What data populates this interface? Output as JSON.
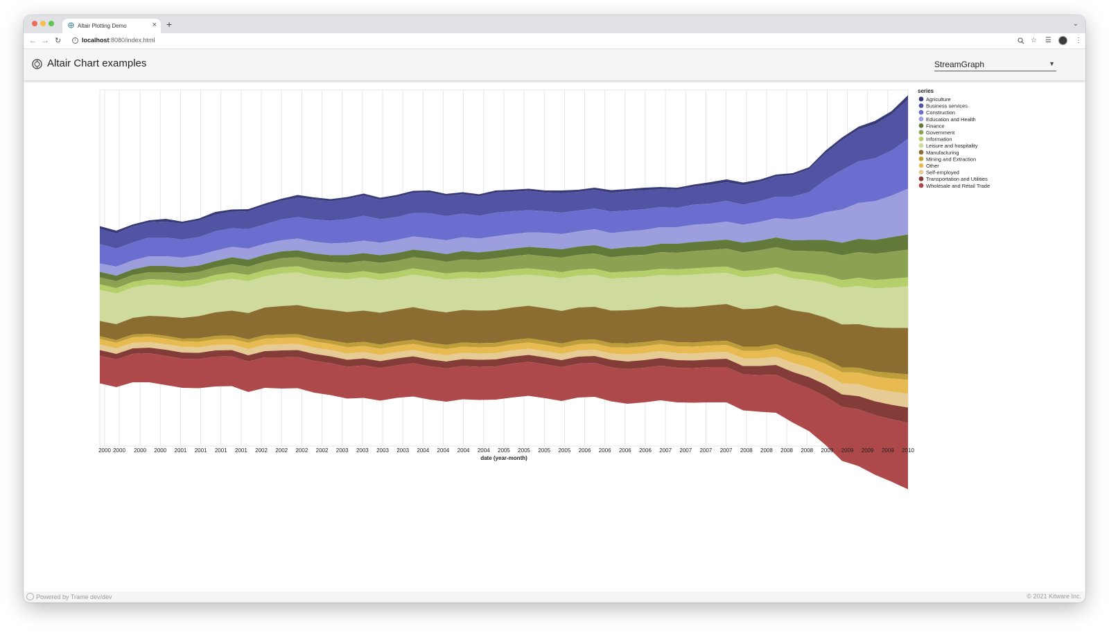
{
  "browser": {
    "tab_title": "Altair Plotting Demo",
    "tab_close": "×",
    "new_tab": "+",
    "url_host": "localhost",
    "url_path": ":8080/index.html",
    "icons": [
      "back-arrow-icon",
      "forward-arrow-icon",
      "reload-icon",
      "info-icon",
      "zoom-icon",
      "star-icon",
      "reading-list-icon",
      "profile-avatar",
      "menu-kebab-icon",
      "favicon"
    ]
  },
  "app": {
    "title": "Altair Chart examples",
    "select_value": "StreamGraph"
  },
  "footer": {
    "left": "Powered by Trame dev/dev",
    "right": "© 2021 Kitware Inc."
  },
  "chart_data": {
    "type": "area",
    "subtype": "streamgraph (centered stacked area)",
    "xlabel": "date (year-month)",
    "legend_title": "series",
    "legend_position": "right",
    "grid": "vertical",
    "x_tick_labels": [
      "2000",
      "2000",
      "2000",
      "2000",
      "2001",
      "2001",
      "2001",
      "2001",
      "2002",
      "2002",
      "2002",
      "2002",
      "2003",
      "2003",
      "2003",
      "2003",
      "2004",
      "2004",
      "2004",
      "2004",
      "2005",
      "2005",
      "2005",
      "2005",
      "2006",
      "2006",
      "2006",
      "2006",
      "2007",
      "2007",
      "2007",
      "2007",
      "2008",
      "2008",
      "2008",
      "2008",
      "2009",
      "2009",
      "2009",
      "2009",
      "2010"
    ],
    "categories": [
      "Agriculture",
      "Business services",
      "Construction",
      "Education and Health",
      "Finance",
      "Government",
      "Information",
      "Leisure and hospitality",
      "Manufacturing",
      "Mining and Extraction",
      "Other",
      "Self-employed",
      "Transportation and Utilities",
      "Wholesale and Retail Trade"
    ],
    "series_order_top_to_bottom": [
      "Agriculture",
      "Business services",
      "Construction",
      "Education and Health",
      "Finance",
      "Government",
      "Information",
      "Leisure and hospitality",
      "Manufacturing",
      "Mining and Extraction",
      "Other",
      "Self-employed",
      "Transportation and Utilities",
      "Wholesale and Retail Trade"
    ],
    "colors": [
      "#393b79",
      "#5254a3",
      "#6b6ecf",
      "#9c9ede",
      "#637939",
      "#8ca252",
      "#b5cf6b",
      "#cedb9c",
      "#8c6d31",
      "#bd9e39",
      "#e7ba52",
      "#e7cb94",
      "#843c39",
      "#ad494a"
    ],
    "band_widths": {
      "Agriculture": [
        4,
        4,
        3,
        3,
        4,
        3,
        3,
        4,
        3,
        3,
        3,
        3,
        4,
        3,
        3,
        3,
        3,
        3,
        3,
        3,
        3,
        3,
        3,
        3,
        3,
        3,
        3,
        3,
        4,
        3,
        3,
        4,
        3,
        4,
        3,
        3,
        3,
        4,
        4,
        4,
        3,
        3,
        3,
        3,
        4,
        4,
        4,
        5,
        5,
        6
      ],
      "Business services": [
        22,
        22,
        23,
        22,
        23,
        23,
        24,
        24,
        24,
        26,
        27,
        27,
        28,
        29,
        28,
        29,
        29,
        28,
        29,
        29,
        30,
        29,
        28,
        28,
        29,
        28,
        28,
        27,
        28,
        27,
        27,
        27,
        28,
        27,
        26,
        26,
        26,
        27,
        27,
        28,
        28,
        29,
        31,
        33,
        38,
        43,
        46,
        49,
        52,
        57
      ],
      "Construction": [
        28,
        26,
        26,
        27,
        27,
        26,
        26,
        28,
        27,
        28,
        28,
        30,
        31,
        32,
        33,
        34,
        36,
        34,
        33,
        34,
        36,
        35,
        34,
        33,
        34,
        33,
        32,
        31,
        31,
        30,
        30,
        31,
        30,
        30,
        29,
        28,
        29,
        29,
        30,
        29,
        30,
        31,
        33,
        36,
        47,
        57,
        60,
        62,
        65,
        72
      ],
      "Education and Health": [
        12,
        13,
        13,
        14,
        14,
        14,
        15,
        15,
        15,
        16,
        16,
        16,
        17,
        17,
        17,
        18,
        18,
        18,
        19,
        19,
        19,
        20,
        20,
        20,
        21,
        21,
        21,
        22,
        22,
        22,
        23,
        23,
        23,
        24,
        24,
        24,
        25,
        25,
        26,
        26,
        27,
        28,
        30,
        33,
        40,
        48,
        52,
        56,
        60,
        66
      ],
      "Finance": [
        8,
        8,
        8,
        9,
        9,
        9,
        9,
        9,
        10,
        10,
        10,
        10,
        10,
        10,
        10,
        11,
        11,
        11,
        11,
        11,
        11,
        11,
        12,
        11,
        11,
        11,
        11,
        12,
        12,
        12,
        12,
        12,
        12,
        12,
        12,
        13,
        13,
        13,
        13,
        14,
        14,
        14,
        15,
        16,
        17,
        18,
        19,
        20,
        21,
        22
      ],
      "Government": [
        10,
        10,
        10,
        10,
        11,
        11,
        11,
        11,
        12,
        12,
        12,
        13,
        13,
        14,
        14,
        15,
        15,
        16,
        16,
        16,
        17,
        17,
        18,
        18,
        19,
        19,
        20,
        20,
        21,
        21,
        22,
        22,
        23,
        23,
        24,
        24,
        25,
        25,
        26,
        27,
        28,
        29,
        30,
        32,
        34,
        36,
        37,
        38,
        39,
        40
      ],
      "Information": [
        8,
        8,
        8,
        8,
        8,
        9,
        9,
        9,
        9,
        9,
        9,
        9,
        9,
        9,
        9,
        9,
        9,
        9,
        9,
        9,
        9,
        9,
        9,
        9,
        9,
        9,
        9,
        9,
        9,
        9,
        9,
        9,
        9,
        9,
        9,
        9,
        9,
        9,
        9,
        9,
        9,
        9,
        10,
        10,
        11,
        11,
        12,
        12,
        13,
        13
      ],
      "Leisure and hospitality": [
        45,
        44,
        44,
        45,
        45,
        44,
        44,
        45,
        46,
        46,
        45,
        47,
        47,
        46,
        46,
        47,
        48,
        47,
        46,
        47,
        48,
        47,
        46,
        46,
        47,
        46,
        45,
        46,
        47,
        46,
        46,
        46,
        47,
        46,
        45,
        46,
        47,
        46,
        45,
        46,
        47,
        46,
        46,
        47,
        50,
        53,
        55,
        56,
        58,
        60
      ],
      "Manufacturing": [
        22,
        23,
        24,
        26,
        28,
        30,
        32,
        34,
        36,
        38,
        40,
        41,
        42,
        43,
        44,
        45,
        45,
        46,
        46,
        47,
        47,
        47,
        47,
        47,
        47,
        47,
        47,
        47,
        47,
        47,
        47,
        47,
        48,
        48,
        49,
        50,
        51,
        52,
        53,
        54,
        55,
        56,
        57,
        58,
        60,
        62,
        63,
        64,
        65,
        67
      ],
      "Mining and Extraction": [
        4,
        4,
        4,
        4,
        4,
        4,
        5,
        5,
        5,
        5,
        5,
        5,
        5,
        5,
        5,
        6,
        6,
        6,
        6,
        6,
        6,
        6,
        6,
        6,
        6,
        6,
        6,
        6,
        6,
        6,
        6,
        6,
        6,
        6,
        6,
        6,
        6,
        6,
        6,
        6,
        6,
        6,
        6,
        7,
        7,
        7,
        7,
        7,
        8,
        8
      ],
      "Other": [
        8,
        8,
        8,
        8,
        8,
        8,
        8,
        8,
        8,
        9,
        9,
        9,
        9,
        9,
        9,
        9,
        9,
        9,
        9,
        9,
        9,
        9,
        9,
        9,
        9,
        9,
        9,
        9,
        9,
        9,
        9,
        9,
        10,
        10,
        10,
        10,
        10,
        10,
        10,
        11,
        11,
        12,
        13,
        14,
        15,
        16,
        17,
        18,
        19,
        20
      ],
      "Self-employed": [
        8,
        8,
        8,
        8,
        8,
        8,
        8,
        8,
        8,
        9,
        9,
        9,
        9,
        9,
        9,
        9,
        9,
        9,
        9,
        9,
        9,
        9,
        9,
        9,
        9,
        9,
        9,
        9,
        9,
        9,
        9,
        9,
        10,
        10,
        10,
        10,
        10,
        10,
        10,
        11,
        11,
        12,
        13,
        14,
        15,
        16,
        17,
        18,
        19,
        20
      ],
      "Transportation and Utilities": [
        8,
        8,
        8,
        8,
        9,
        9,
        9,
        9,
        9,
        9,
        9,
        10,
        10,
        10,
        10,
        10,
        10,
        10,
        10,
        10,
        10,
        10,
        10,
        10,
        10,
        10,
        10,
        10,
        10,
        10,
        10,
        11,
        11,
        11,
        11,
        11,
        11,
        11,
        12,
        12,
        13,
        14,
        15,
        16,
        17,
        18,
        19,
        20,
        21,
        22
      ],
      "Wholesale and Retail Trade": [
        40,
        40,
        41,
        42,
        42,
        42,
        42,
        43,
        43,
        44,
        44,
        45,
        45,
        46,
        46,
        46,
        47,
        47,
        47,
        48,
        48,
        48,
        48,
        48,
        48,
        49,
        49,
        49,
        49,
        49,
        49,
        49,
        50,
        50,
        50,
        50,
        50,
        51,
        51,
        52,
        53,
        55,
        58,
        62,
        70,
        78,
        82,
        86,
        90,
        96
      ]
    },
    "center_line": [
      418,
      424,
      416,
      413,
      414,
      418,
      416,
      410,
      408,
      412,
      405,
      402,
      399,
      404,
      407,
      408,
      405,
      410,
      406,
      402,
      404,
      408,
      405,
      407,
      404,
      402,
      400,
      403,
      405,
      402,
      400,
      405,
      406,
      404,
      402,
      404,
      402,
      400,
      398,
      406,
      405,
      402,
      408,
      410,
      408,
      410,
      406,
      408,
      406,
      400
    ]
  }
}
